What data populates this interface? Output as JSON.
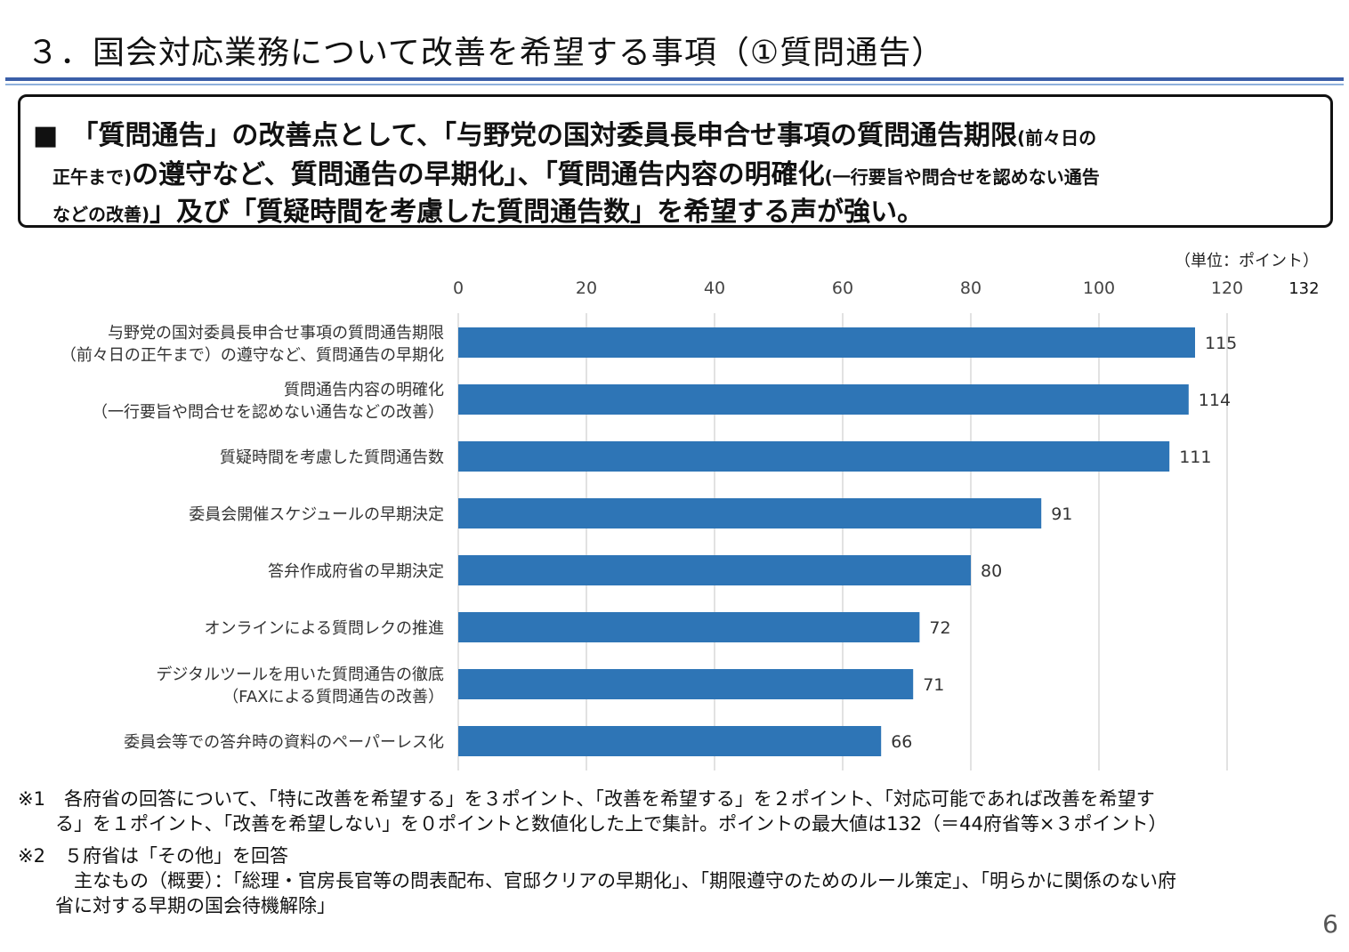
{
  "header": {
    "title": "３．国会対応業務について改善を希望する事項（①質問通告）"
  },
  "summary": {
    "l1_a": "■　「質問通告」の改善点として、「与野党の国対委員長申合せ事項の質問通告期限",
    "l1_small": "(前々日の",
    "l2_small1": "正午まで)",
    "l2_a": "の遵守など、質問通告の早期化」、「質問通告内容の明確化",
    "l2_small2": "(一行要旨や問合せを認めない通告",
    "l3_small": "などの改善)",
    "l3_a": "」及び「質疑時間を考慮した質問通告数」を希望する声が強い。"
  },
  "chart_data": {
    "type": "bar",
    "orientation": "horizontal",
    "unit_label": "（単位：ポイント）",
    "xlim": [
      0,
      132
    ],
    "ticks": [
      0,
      20,
      40,
      60,
      80,
      100,
      120
    ],
    "max_label": "132",
    "grid": true,
    "bar_color": "#2e75b6",
    "categories": [
      [
        "与野党の国対委員長申合せ事項の質問通告期限",
        "（前々日の正午まで）の遵守など、質問通告の早期化"
      ],
      [
        "質問通告内容の明確化",
        "（一行要旨や問合せを認めない通告などの改善）"
      ],
      [
        "質疑時間を考慮した質問通告数"
      ],
      [
        "委員会開催スケジュールの早期決定"
      ],
      [
        "答弁作成府省の早期決定"
      ],
      [
        "オンラインによる質問レクの推進"
      ],
      [
        "デジタルツールを用いた質問通告の徹底",
        "（FAXによる質問通告の改善）"
      ],
      [
        "委員会等での答弁時の資料のペーパーレス化"
      ]
    ],
    "values": [
      115,
      114,
      111,
      91,
      80,
      72,
      71,
      66
    ]
  },
  "notes": {
    "n1a": "※1　各府省の回答について、「特に改善を希望する」を３ポイント、「改善を希望する」を２ポイント、「対応可能であれば改善を希望す",
    "n1b": "　　る」を１ポイント、「改善を希望しない」を０ポイントと数値化した上で集計。ポイントの最大値は132（＝44府省等×３ポイント）",
    "n2a": "※2　５府省は「その他」を回答",
    "n2b": "　　　主なもの（概要）：「総理・官房長官等の問表配布、官邸クリアの早期化」、「期限遵守のためのルール策定」、「明らかに関係のない府",
    "n2c": "　　省に対する早期の国会待機解除」"
  },
  "page_number": "6"
}
